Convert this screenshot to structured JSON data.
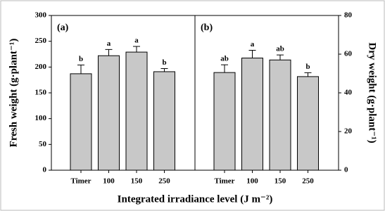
{
  "chart_data": [
    {
      "type": "bar",
      "panel_label": "(a)",
      "ylabel": "Fresh weight (g·plant⁻¹)",
      "xlabel": "Integrated irradiance level (J m⁻²)",
      "categories": [
        "Timer",
        "100",
        "150",
        "250"
      ],
      "values": [
        187,
        222,
        229,
        191
      ],
      "errors": [
        17,
        12,
        11,
        6
      ],
      "letters": [
        "b",
        "a",
        "a",
        "b"
      ],
      "color": "#c8c8c8",
      "ylim": [
        0,
        300
      ],
      "yticks": [
        0,
        50,
        100,
        150,
        200,
        250,
        300
      ],
      "axis_side": "left"
    },
    {
      "type": "bar",
      "panel_label": "(b)",
      "ylabel": "Dry weight (g·plant⁻¹)",
      "categories": [
        "Timer",
        "100",
        "150",
        "250"
      ],
      "values": [
        50.5,
        58,
        57,
        48.4
      ],
      "errors": [
        4,
        4,
        2.6,
        2
      ],
      "letters": [
        "ab",
        "a",
        "ab",
        "b"
      ],
      "color": "#c8c8c8",
      "ylim": [
        0,
        80
      ],
      "yticks": [
        0,
        20,
        40,
        60,
        80
      ],
      "axis_side": "right"
    }
  ]
}
